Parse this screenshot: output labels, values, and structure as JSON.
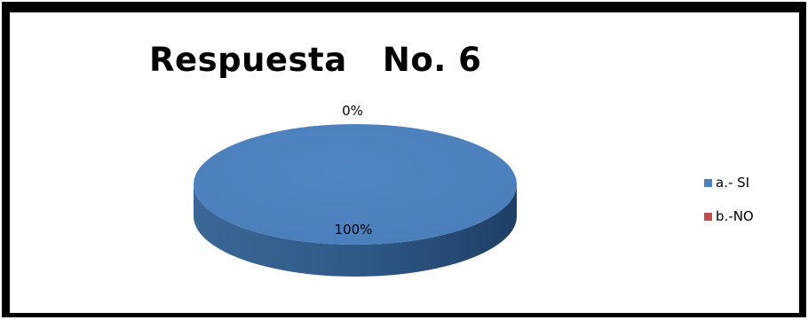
{
  "chart_data": {
    "type": "pie",
    "title": "Respuesta   No. 6",
    "categories": [
      "a.- SI",
      "b.-NO"
    ],
    "values": [
      100,
      0
    ],
    "data_labels": [
      "100%",
      "0%"
    ],
    "colors": [
      "#4F81BD",
      "#C0504D"
    ],
    "legend_position": "right",
    "style": "3d"
  }
}
